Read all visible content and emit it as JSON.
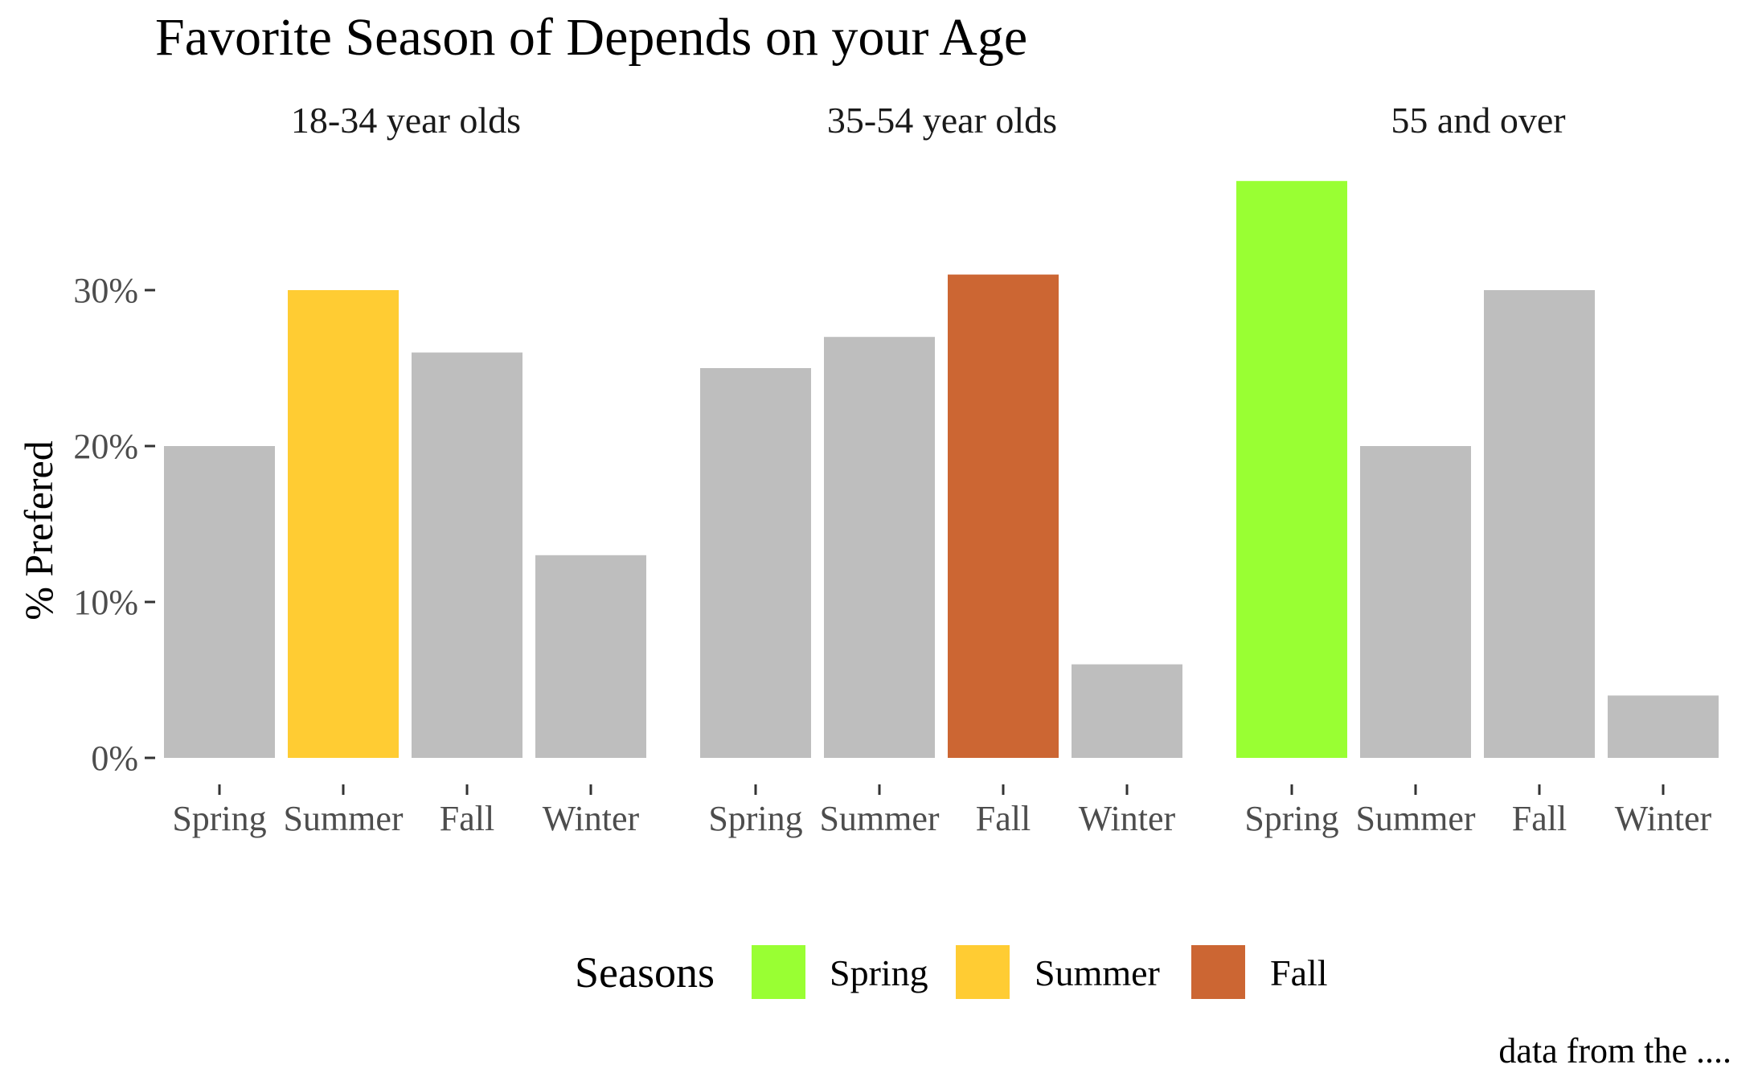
{
  "chart_data": {
    "type": "bar",
    "title": "Favorite Season of Depends on your Age",
    "ylabel": "% Prefered",
    "xlabel": "",
    "caption": "data from the ....",
    "categories": [
      "Spring",
      "Summer",
      "Fall",
      "Winter"
    ],
    "ylim": [
      0,
      0.37
    ],
    "yticks": [
      {
        "value": 0,
        "label": "0%"
      },
      {
        "value": 0.1,
        "label": "10%"
      },
      {
        "value": 0.2,
        "label": "20%"
      },
      {
        "value": 0.3,
        "label": "30%"
      }
    ],
    "grid": false,
    "legend": {
      "title": "Seasons",
      "position": "bottom",
      "items": [
        {
          "name": "Spring",
          "color": "#99FF33"
        },
        {
          "name": "Summer",
          "color": "#FFCC33"
        },
        {
          "name": "Fall",
          "color": "#CC6633"
        }
      ]
    },
    "default_color": "#BEBEBE",
    "panels": [
      {
        "label": "18-34 year olds",
        "values": [
          0.2,
          0.3,
          0.26,
          0.13
        ],
        "highlight": "Summer"
      },
      {
        "label": "35-54 year olds",
        "values": [
          0.25,
          0.27,
          0.31,
          0.06
        ],
        "highlight": "Fall"
      },
      {
        "label": "55 and over",
        "values": [
          0.37,
          0.2,
          0.3,
          0.04
        ],
        "highlight": "Spring"
      }
    ]
  }
}
